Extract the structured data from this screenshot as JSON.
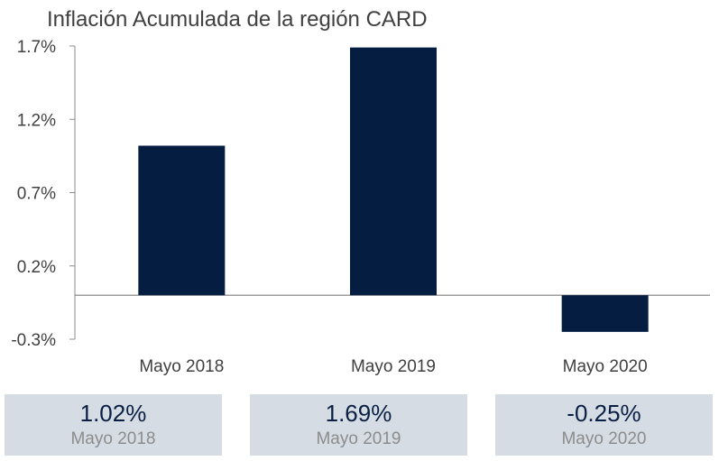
{
  "chart_data": {
    "type": "bar",
    "title": "Inflación Acumulada de la región CARD",
    "categories": [
      "Mayo 2018",
      "Mayo 2019",
      "Mayo 2020"
    ],
    "values": [
      1.02,
      1.69,
      -0.25
    ],
    "ylim": [
      -0.3,
      1.7
    ],
    "yticks": [
      "1.7%",
      "1.2%",
      "0.7%",
      "0.2%",
      "-0.3%"
    ],
    "ytick_values": [
      1.7,
      1.2,
      0.7,
      0.2,
      -0.3
    ],
    "xlabel": "",
    "ylabel": "",
    "bar_color": "#061d42",
    "grid": false
  },
  "cards": [
    {
      "value": "1.02%",
      "label": "Mayo 2018"
    },
    {
      "value": "1.69%",
      "label": "Mayo 2019"
    },
    {
      "value": "-0.25%",
      "label": "Mayo 2020"
    }
  ]
}
